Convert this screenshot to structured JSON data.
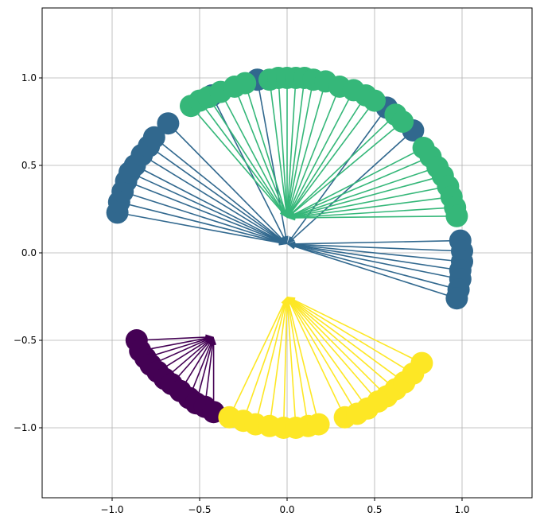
{
  "chart_data": {
    "type": "scatter",
    "title": "",
    "xlabel": "",
    "ylabel": "",
    "xlim": [
      -1.4,
      1.4
    ],
    "ylim": [
      -1.4,
      1.4
    ],
    "grid": true,
    "xticks": [
      -1.0,
      -0.5,
      0.0,
      0.5,
      1.0
    ],
    "yticks": [
      -1.0,
      -0.5,
      0.0,
      0.5,
      1.0
    ],
    "xtick_labels": [
      "−1.0",
      "−0.5",
      "0.0",
      "0.5",
      "1.0"
    ],
    "ytick_labels": [
      "−1.0",
      "−0.5",
      "0.0",
      "0.5",
      "1.0"
    ],
    "series": [
      {
        "color": "#440154",
        "arrow_start": [
          -0.42,
          -0.48
        ],
        "points": [
          [
            -0.86,
            -0.5
          ],
          [
            -0.84,
            -0.56
          ],
          [
            -0.81,
            -0.6
          ],
          [
            -0.78,
            -0.64
          ],
          [
            -0.74,
            -0.68
          ],
          [
            -0.7,
            -0.72
          ],
          [
            -0.66,
            -0.75
          ],
          [
            -0.61,
            -0.79
          ],
          [
            -0.56,
            -0.83
          ],
          [
            -0.52,
            -0.86
          ],
          [
            -0.47,
            -0.88
          ],
          [
            -0.42,
            -0.91
          ]
        ]
      },
      {
        "color": "#31688e",
        "arrow_start": [
          0.0,
          0.05
        ],
        "points": [
          [
            -0.97,
            0.23
          ],
          [
            -0.96,
            0.29
          ],
          [
            -0.94,
            0.35
          ],
          [
            -0.92,
            0.41
          ],
          [
            -0.9,
            0.46
          ],
          [
            -0.87,
            0.5
          ],
          [
            -0.83,
            0.56
          ],
          [
            -0.79,
            0.61
          ],
          [
            -0.76,
            0.66
          ],
          [
            -0.68,
            0.74
          ],
          [
            -0.43,
            0.9
          ],
          [
            -0.17,
            0.99
          ],
          [
            0.57,
            0.83
          ],
          [
            0.72,
            0.7
          ],
          [
            0.99,
            0.07
          ],
          [
            1.0,
            0.01
          ],
          [
            1.0,
            -0.05
          ],
          [
            0.99,
            -0.1
          ],
          [
            0.99,
            -0.15
          ],
          [
            0.98,
            -0.21
          ],
          [
            0.97,
            -0.26
          ]
        ]
      },
      {
        "color": "#35b779",
        "arrow_start": [
          0.0,
          0.2
        ],
        "points": [
          [
            -0.55,
            0.84
          ],
          [
            -0.5,
            0.87
          ],
          [
            -0.45,
            0.89
          ],
          [
            -0.38,
            0.92
          ],
          [
            -0.3,
            0.95
          ],
          [
            -0.24,
            0.97
          ],
          [
            -0.1,
            0.99
          ],
          [
            -0.05,
            1.0
          ],
          [
            0.0,
            1.0
          ],
          [
            0.05,
            1.0
          ],
          [
            0.1,
            1.0
          ],
          [
            0.15,
            0.99
          ],
          [
            0.22,
            0.98
          ],
          [
            0.3,
            0.95
          ],
          [
            0.38,
            0.93
          ],
          [
            0.45,
            0.9
          ],
          [
            0.5,
            0.87
          ],
          [
            0.62,
            0.79
          ],
          [
            0.66,
            0.75
          ],
          [
            0.78,
            0.6
          ],
          [
            0.82,
            0.55
          ],
          [
            0.86,
            0.49
          ],
          [
            0.89,
            0.44
          ],
          [
            0.92,
            0.38
          ],
          [
            0.94,
            0.32
          ],
          [
            0.96,
            0.26
          ],
          [
            0.97,
            0.21
          ]
        ]
      },
      {
        "color": "#fde725",
        "arrow_start": [
          0.0,
          -0.25
        ],
        "points": [
          [
            -0.33,
            -0.94
          ],
          [
            -0.25,
            -0.96
          ],
          [
            -0.18,
            -0.98
          ],
          [
            -0.1,
            -0.99
          ],
          [
            -0.02,
            -1.0
          ],
          [
            0.05,
            -1.0
          ],
          [
            0.12,
            -0.99
          ],
          [
            0.18,
            -0.98
          ],
          [
            0.33,
            -0.94
          ],
          [
            0.4,
            -0.92
          ],
          [
            0.46,
            -0.89
          ],
          [
            0.52,
            -0.85
          ],
          [
            0.57,
            -0.82
          ],
          [
            0.62,
            -0.78
          ],
          [
            0.67,
            -0.74
          ],
          [
            0.72,
            -0.69
          ],
          [
            0.77,
            -0.63
          ]
        ]
      }
    ]
  }
}
